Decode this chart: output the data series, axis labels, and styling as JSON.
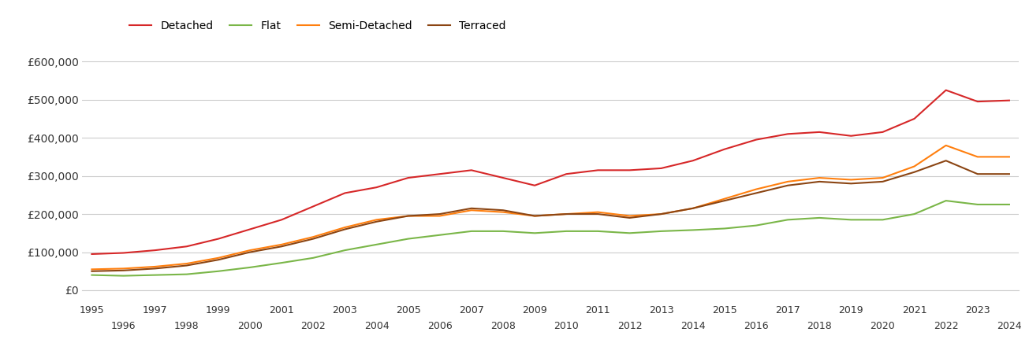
{
  "years": [
    1995,
    1996,
    1997,
    1998,
    1999,
    2000,
    2001,
    2002,
    2003,
    2004,
    2005,
    2006,
    2007,
    2008,
    2009,
    2010,
    2011,
    2012,
    2013,
    2014,
    2015,
    2016,
    2017,
    2018,
    2019,
    2020,
    2021,
    2022,
    2023,
    2024
  ],
  "detached": [
    95000,
    98000,
    105000,
    115000,
    135000,
    160000,
    185000,
    220000,
    255000,
    270000,
    295000,
    305000,
    315000,
    295000,
    275000,
    305000,
    315000,
    315000,
    320000,
    340000,
    370000,
    395000,
    410000,
    415000,
    405000,
    415000,
    450000,
    525000,
    495000,
    498000
  ],
  "flat": [
    40000,
    38000,
    40000,
    42000,
    50000,
    60000,
    72000,
    85000,
    105000,
    120000,
    135000,
    145000,
    155000,
    155000,
    150000,
    155000,
    155000,
    150000,
    155000,
    158000,
    162000,
    170000,
    185000,
    190000,
    185000,
    185000,
    200000,
    235000,
    225000,
    225000
  ],
  "semi_detached": [
    55000,
    57000,
    62000,
    70000,
    85000,
    105000,
    120000,
    140000,
    165000,
    185000,
    195000,
    195000,
    210000,
    205000,
    195000,
    200000,
    205000,
    195000,
    200000,
    215000,
    240000,
    265000,
    285000,
    295000,
    290000,
    295000,
    325000,
    380000,
    350000,
    350000
  ],
  "terraced": [
    50000,
    52000,
    57000,
    65000,
    80000,
    100000,
    115000,
    135000,
    160000,
    180000,
    195000,
    200000,
    215000,
    210000,
    195000,
    200000,
    200000,
    190000,
    200000,
    215000,
    235000,
    255000,
    275000,
    285000,
    280000,
    285000,
    310000,
    340000,
    305000,
    305000
  ],
  "colors": {
    "detached": "#d62728",
    "flat": "#7ab648",
    "semi_detached": "#ff7f0e",
    "terraced": "#8B4513"
  },
  "ylim": [
    0,
    650000
  ],
  "yticks": [
    0,
    100000,
    200000,
    300000,
    400000,
    500000,
    600000
  ],
  "ytick_labels": [
    "£0",
    "£100,000",
    "£200,000",
    "£300,000",
    "£400,000",
    "£500,000",
    "£600,000"
  ],
  "grid_color": "#cccccc",
  "background_color": "#ffffff",
  "line_width": 1.5
}
